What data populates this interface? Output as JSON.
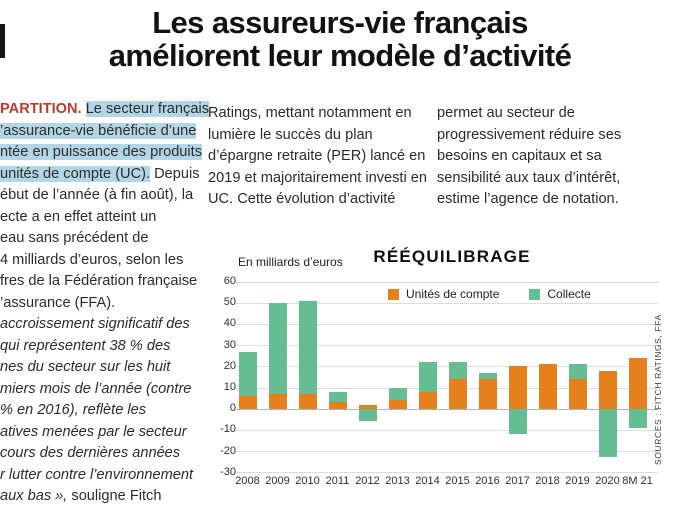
{
  "headline": {
    "line1": "Les assureurs-vie français",
    "line2": "améliorent leur modèle d’activité"
  },
  "article": {
    "left_lines": [
      [
        {
          "text": "PARTITION.",
          "style": "kicker"
        },
        {
          "text": " ",
          "style": "n"
        },
        {
          "text": "Le secteur français",
          "style": "hl"
        }
      ],
      [
        {
          "text": "’assurance-vie bénéficie d’une",
          "style": "hl"
        }
      ],
      [
        {
          "text": "ntée en puissance des produits",
          "style": "hl"
        }
      ],
      [
        {
          "text": "unités de compte (UC).",
          "style": "hl"
        },
        {
          "text": " Depuis",
          "style": "n"
        }
      ],
      [
        {
          "text": "ébut de l’année (à fin août), la",
          "style": "n"
        }
      ],
      [
        {
          "text": "ecte a en effet atteint un",
          "style": "n"
        }
      ],
      [
        {
          "text": "eau sans précédent de",
          "style": "n"
        }
      ],
      [
        {
          "text": "4 milliards d’euros, selon les",
          "style": "n"
        }
      ],
      [
        {
          "text": "fres de la Fédération française",
          "style": "n"
        }
      ],
      [
        {
          "text": "’assurance (FFA).",
          "style": "n"
        }
      ],
      [
        {
          "text": "accroissement significatif des",
          "style": "it"
        }
      ],
      [
        {
          "text": "qui représentent 38 % des",
          "style": "it"
        }
      ],
      [
        {
          "text": "nes du secteur sur les huit",
          "style": "it"
        }
      ],
      [
        {
          "text": "miers mois de l’année (contre",
          "style": "it"
        }
      ],
      [
        {
          "text": "% en 2016), reflète les",
          "style": "it"
        }
      ],
      [
        {
          "text": "atives menées par le secteur",
          "style": "it"
        }
      ],
      [
        {
          "text": "cours des dernières années",
          "style": "it"
        }
      ],
      [
        {
          "text": "r lutter contre l’environnement",
          "style": "it"
        }
      ],
      [
        {
          "text": "aux bas »,",
          "style": "it"
        },
        {
          "text": " souligne Fitch",
          "style": "n"
        }
      ]
    ],
    "middle_lines": [
      "Ratings, mettant notamment en",
      "lumière le succès du plan",
      "d’épargne retraite (PER) lancé en",
      "2019 et majoritairement investi en",
      "UC. Cette évolution d’activité"
    ],
    "right_lines": [
      "permet au secteur de",
      "progressivement réduire ses",
      "besoins en capitaux et sa",
      "sensibilité aux taux d’intérêt,",
      "estime l’agence de notation."
    ]
  },
  "chart_data": {
    "type": "bar",
    "title": "RÉÉQUILIBRAGE",
    "unit_label": "En milliards d’euros",
    "categories": [
      "2008",
      "2009",
      "2010",
      "2011",
      "2012",
      "2013",
      "2014",
      "2015",
      "2016",
      "2017",
      "2018",
      "2019",
      "2020",
      "8M 21"
    ],
    "series": [
      {
        "name": "Unités de compte",
        "color": "#e5801c",
        "values": [
          6,
          7,
          7,
          3,
          2,
          4,
          8,
          14,
          14,
          20,
          21,
          14,
          18,
          24
        ]
      },
      {
        "name": "Collecte",
        "color": "#67bd92",
        "values": [
          21,
          43,
          44,
          5,
          -6,
          6,
          14,
          8,
          3,
          -12,
          0,
          7,
          -23,
          -9
        ]
      }
    ],
    "stacked": true,
    "ylim": [
      -30,
      60
    ],
    "ytick_step": 10,
    "grid": true,
    "legend_position": "top",
    "source": "SOURCES : FITCH RATINGS, FFA"
  }
}
